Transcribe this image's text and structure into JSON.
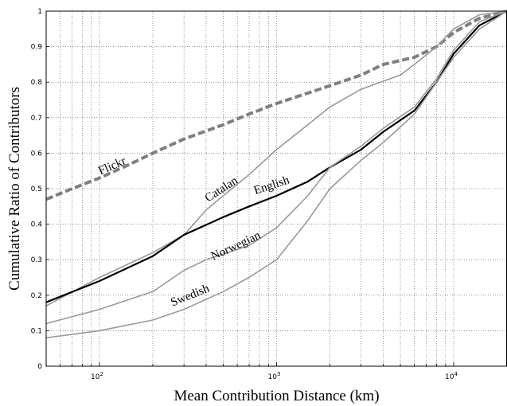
{
  "chart_data": {
    "type": "line",
    "title": "",
    "xlabel": "Mean Contribution Distance (km)",
    "ylabel": "Cumulative Ratio of Contributors",
    "xscale": "log",
    "xlim": [
      50,
      20000
    ],
    "ylim": [
      0,
      1
    ],
    "grid": true,
    "x_tick_labels": [
      {
        "value": 100,
        "base": "10",
        "exp": "2"
      },
      {
        "value": 1000,
        "base": "10",
        "exp": "3"
      },
      {
        "value": 10000,
        "base": "10",
        "exp": "4"
      }
    ],
    "y_ticks": [
      0,
      0.1,
      0.2,
      0.3,
      0.4,
      0.5,
      0.6,
      0.7,
      0.8,
      0.9,
      1
    ],
    "y_tick_labels": [
      "0",
      "0.1",
      "0.2",
      "0.3",
      "0.4",
      "0.5",
      "0.6",
      "0.7",
      "0.8",
      "0.9",
      "1"
    ],
    "series": [
      {
        "name": "Flickr",
        "color": "#7f7f7f",
        "style": "dashed",
        "points": [
          [
            50,
            0.47
          ],
          [
            70,
            0.5
          ],
          [
            100,
            0.53
          ],
          [
            150,
            0.57
          ],
          [
            200,
            0.6
          ],
          [
            300,
            0.64
          ],
          [
            500,
            0.68
          ],
          [
            700,
            0.71
          ],
          [
            1000,
            0.74
          ],
          [
            2000,
            0.79
          ],
          [
            3000,
            0.82
          ],
          [
            4000,
            0.85
          ],
          [
            6000,
            0.87
          ],
          [
            8000,
            0.9
          ],
          [
            10000,
            0.94
          ],
          [
            14000,
            0.98
          ],
          [
            20000,
            1.0
          ]
        ]
      },
      {
        "name": "Catalan",
        "color": "#999999",
        "style": "solid",
        "points": [
          [
            50,
            0.17
          ],
          [
            100,
            0.25
          ],
          [
            200,
            0.32
          ],
          [
            300,
            0.37
          ],
          [
            400,
            0.44
          ],
          [
            500,
            0.48
          ],
          [
            700,
            0.54
          ],
          [
            1000,
            0.61
          ],
          [
            1500,
            0.68
          ],
          [
            2000,
            0.73
          ],
          [
            3000,
            0.78
          ],
          [
            5000,
            0.82
          ],
          [
            6000,
            0.85
          ],
          [
            8000,
            0.9
          ],
          [
            10000,
            0.95
          ],
          [
            14000,
            0.99
          ],
          [
            20000,
            1.0
          ]
        ]
      },
      {
        "name": "English",
        "color": "#000000",
        "style": "solid",
        "points": [
          [
            50,
            0.18
          ],
          [
            100,
            0.24
          ],
          [
            200,
            0.31
          ],
          [
            300,
            0.37
          ],
          [
            500,
            0.42
          ],
          [
            700,
            0.45
          ],
          [
            1000,
            0.48
          ],
          [
            1500,
            0.52
          ],
          [
            2000,
            0.56
          ],
          [
            3000,
            0.61
          ],
          [
            4000,
            0.66
          ],
          [
            6000,
            0.72
          ],
          [
            8000,
            0.8
          ],
          [
            10000,
            0.88
          ],
          [
            14000,
            0.96
          ],
          [
            20000,
            1.0
          ]
        ]
      },
      {
        "name": "Norwegian",
        "color": "#999999",
        "style": "solid",
        "points": [
          [
            50,
            0.12
          ],
          [
            100,
            0.16
          ],
          [
            200,
            0.21
          ],
          [
            300,
            0.27
          ],
          [
            400,
            0.3
          ],
          [
            700,
            0.34
          ],
          [
            1000,
            0.39
          ],
          [
            1500,
            0.48
          ],
          [
            2000,
            0.56
          ],
          [
            3000,
            0.62
          ],
          [
            4000,
            0.67
          ],
          [
            6000,
            0.73
          ],
          [
            8000,
            0.81
          ],
          [
            10000,
            0.89
          ],
          [
            14000,
            0.97
          ],
          [
            20000,
            1.0
          ]
        ]
      },
      {
        "name": "Swedish",
        "color": "#999999",
        "style": "solid",
        "points": [
          [
            50,
            0.08
          ],
          [
            100,
            0.1
          ],
          [
            200,
            0.13
          ],
          [
            300,
            0.16
          ],
          [
            500,
            0.21
          ],
          [
            700,
            0.25
          ],
          [
            1000,
            0.3
          ],
          [
            1500,
            0.41
          ],
          [
            2000,
            0.5
          ],
          [
            3000,
            0.58
          ],
          [
            4000,
            0.63
          ],
          [
            6000,
            0.71
          ],
          [
            8000,
            0.8
          ],
          [
            10000,
            0.87
          ],
          [
            14000,
            0.95
          ],
          [
            20000,
            1.0
          ]
        ]
      }
    ],
    "labels": [
      {
        "text": "Flickr",
        "x": 120,
        "y": 0.555,
        "angle": -23
      },
      {
        "text": "Catalan",
        "x": 500,
        "y": 0.49,
        "angle": -33
      },
      {
        "text": "English",
        "x": 950,
        "y": 0.5,
        "angle": -18
      },
      {
        "text": "Norwegian",
        "x": 600,
        "y": 0.33,
        "angle": -25
      },
      {
        "text": "Swedish",
        "x": 330,
        "y": 0.19,
        "angle": -22
      }
    ]
  }
}
